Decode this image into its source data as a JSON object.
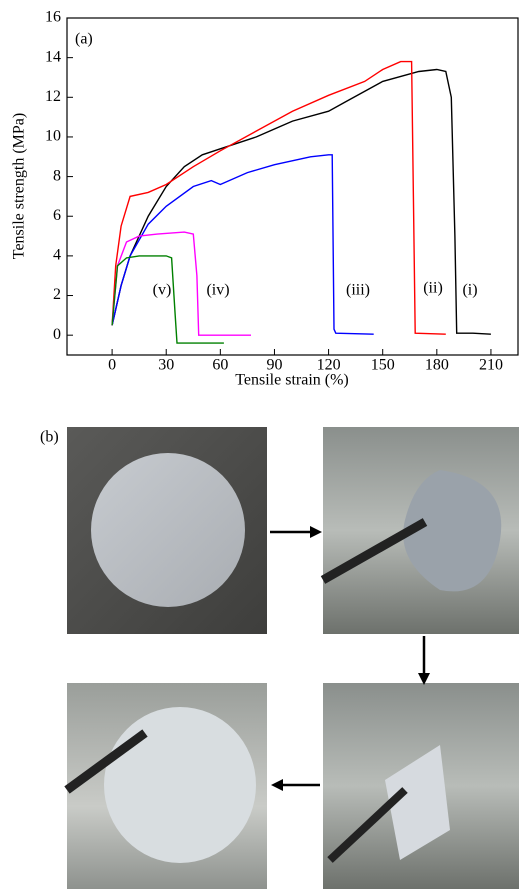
{
  "chart_data": {
    "type": "line",
    "panel_label": "(a)",
    "x_label": "Tensile strain (%)",
    "y_label": "Tensile strength (MPa)",
    "xlim": [
      -25,
      225
    ],
    "ylim": [
      -1,
      16
    ],
    "xticks": [
      0,
      30,
      60,
      90,
      120,
      150,
      180,
      210
    ],
    "yticks": [
      0,
      2,
      4,
      6,
      8,
      10,
      12,
      14,
      16
    ],
    "series": [
      {
        "name": "(i)",
        "color": "#000000",
        "x": [
          0,
          5,
          10,
          20,
          30,
          40,
          50,
          60,
          80,
          100,
          120,
          130,
          150,
          170,
          180,
          185,
          188,
          190,
          191,
          200,
          210
        ],
        "values": [
          0.5,
          2.5,
          4,
          6,
          7.5,
          8.5,
          9.1,
          9.4,
          10,
          10.8,
          11.3,
          11.8,
          12.8,
          13.3,
          13.4,
          13.3,
          12,
          5,
          0.1,
          0.1,
          0.05
        ]
      },
      {
        "name": "(ii)",
        "color": "#ff0000",
        "x": [
          0,
          2,
          5,
          10,
          20,
          30,
          45,
          60,
          80,
          100,
          120,
          140,
          150,
          160,
          166,
          167,
          168,
          185
        ],
        "values": [
          0.5,
          3.5,
          5.5,
          7,
          7.2,
          7.6,
          8.5,
          9.3,
          10.3,
          11.3,
          12.1,
          12.8,
          13.4,
          13.8,
          13.8,
          7,
          0.1,
          0.05
        ]
      },
      {
        "name": "(iii)",
        "color": "#0000ff",
        "x": [
          0,
          5,
          10,
          20,
          30,
          45,
          55,
          60,
          75,
          90,
          110,
          120,
          122,
          123,
          124,
          145
        ],
        "values": [
          0.5,
          2.5,
          4,
          5.6,
          6.5,
          7.5,
          7.8,
          7.6,
          8.2,
          8.6,
          9.0,
          9.1,
          9.1,
          0.3,
          0.1,
          0.05
        ]
      },
      {
        "name": "(iv)",
        "color": "#ff00ff",
        "x": [
          0,
          3,
          8,
          15,
          25,
          40,
          45,
          47,
          48,
          77
        ],
        "values": [
          0.5,
          3.5,
          4.7,
          5.0,
          5.1,
          5.2,
          5.1,
          3,
          0,
          0
        ]
      },
      {
        "name": "(v)",
        "color": "#008000",
        "x": [
          0,
          3,
          8,
          15,
          30,
          33,
          35,
          36,
          62
        ],
        "values": [
          0.5,
          3.5,
          3.9,
          4.0,
          4.0,
          3.9,
          1,
          -0.4,
          -0.4
        ]
      }
    ]
  },
  "photos_panel": {
    "label": "(b)"
  }
}
